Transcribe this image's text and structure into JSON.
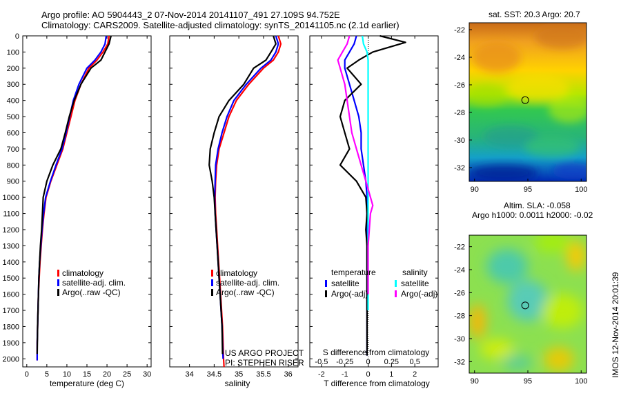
{
  "title_line1": "Argo profile: AO 5904443_2 07-Nov-2014 20141107_491 27.109S 94.752E",
  "title_line2": "Climatology: CARS2009. Satellite-adjusted climatology: synTS_20141105.nc (2.1d earlier)",
  "side_text": "IMOS 12-Nov-2014 20:01:39",
  "credit_line1": "US ARGO PROJECT",
  "credit_line2": "PI: STEPHEN RISER",
  "colors": {
    "climatology": "#ff0000",
    "satellite": "#0000ff",
    "argo": "#000000",
    "salinity_sat": "#00ffff",
    "salinity_argo": "#ff00ff"
  },
  "chart_data": [
    {
      "type": "line",
      "xlabel": "temperature (deg C)",
      "xlim": [
        -1,
        31
      ],
      "ylim": [
        0,
        2050
      ],
      "xticks": [
        "0",
        "5",
        "10",
        "15",
        "20",
        "25",
        "30"
      ],
      "yticks": [
        "0",
        "100",
        "200",
        "300",
        "400",
        "500",
        "600",
        "700",
        "800",
        "900",
        "1000",
        "1100",
        "1200",
        "1300",
        "1400",
        "1500",
        "1600",
        "1700",
        "1800",
        "1900",
        "2000"
      ],
      "legend": [
        "climatology",
        "satellite-adj. clim.",
        "Argo(..raw -QC)"
      ],
      "series": [
        {
          "name": "climatology",
          "color": "#ff0000",
          "x": [
            20.5,
            20.2,
            19.0,
            17.5,
            15.5,
            13.5,
            12.0,
            11.0,
            10.0,
            9.0,
            7.5,
            6.0,
            4.8,
            4.3,
            3.9,
            3.6,
            3.3,
            3.1,
            2.9,
            2.8,
            2.7,
            2.6,
            2.6
          ],
          "y": [
            0,
            50,
            100,
            150,
            200,
            300,
            400,
            500,
            600,
            700,
            800,
            900,
            1000,
            1100,
            1200,
            1300,
            1400,
            1500,
            1600,
            1700,
            1800,
            1900,
            2010
          ]
        },
        {
          "name": "satellite-adj. clim.",
          "color": "#0000ff",
          "x": [
            19.8,
            19.5,
            18.5,
            17.0,
            15.0,
            13.0,
            11.6,
            10.7,
            9.8,
            8.8,
            7.3,
            5.9,
            4.7,
            4.2,
            3.8,
            3.5,
            3.2,
            3.0,
            2.9,
            2.8,
            2.7,
            2.6,
            2.6
          ],
          "y": [
            0,
            50,
            100,
            150,
            200,
            300,
            400,
            500,
            600,
            700,
            800,
            900,
            1000,
            1100,
            1200,
            1300,
            1400,
            1500,
            1600,
            1700,
            1800,
            1900,
            2010
          ]
        },
        {
          "name": "Argo(..raw -QC)",
          "color": "#000000",
          "x": [
            21.0,
            20.5,
            19.5,
            18.5,
            16.0,
            13.5,
            11.8,
            10.6,
            9.6,
            8.5,
            6.5,
            5.0,
            4.1,
            3.9,
            3.7,
            3.4,
            3.2,
            3.0,
            2.9,
            2.8,
            2.7,
            2.6
          ],
          "y": [
            0,
            50,
            100,
            150,
            200,
            300,
            400,
            500,
            600,
            700,
            800,
            900,
            1000,
            1100,
            1200,
            1300,
            1400,
            1500,
            1600,
            1700,
            1800,
            1970
          ]
        }
      ]
    },
    {
      "type": "line",
      "xlabel": "salinity",
      "xlim": [
        33.6,
        36.2
      ],
      "ylim": [
        0,
        2050
      ],
      "xticks": [
        "34",
        "34.5",
        "35",
        "35.5",
        "36"
      ],
      "legend": [
        "climatology",
        "satellite-adj. clim.",
        "Argo(..raw -QC)"
      ],
      "series": [
        {
          "name": "climatology",
          "color": "#ff0000",
          "x": [
            35.8,
            35.85,
            35.8,
            35.7,
            35.5,
            35.2,
            34.95,
            34.8,
            34.7,
            34.6,
            34.55,
            34.53,
            34.52,
            34.53,
            34.55,
            34.57,
            34.59,
            34.61,
            34.63,
            34.65,
            34.67,
            34.68,
            34.69,
            34.7
          ],
          "y": [
            0,
            50,
            100,
            150,
            200,
            300,
            400,
            500,
            600,
            700,
            800,
            900,
            1000,
            1100,
            1200,
            1300,
            1400,
            1500,
            1600,
            1700,
            1800,
            1900,
            2000,
            2050
          ]
        },
        {
          "name": "satellite-adj. clim.",
          "color": "#0000ff",
          "x": [
            35.75,
            35.8,
            35.75,
            35.65,
            35.45,
            35.15,
            34.9,
            34.76,
            34.66,
            34.58,
            34.53,
            34.52,
            34.51,
            34.52,
            34.54,
            34.56,
            34.58,
            34.6,
            34.62,
            34.64,
            34.66,
            34.67,
            34.68
          ],
          "y": [
            0,
            50,
            100,
            150,
            200,
            300,
            400,
            500,
            600,
            700,
            800,
            900,
            1000,
            1100,
            1200,
            1300,
            1400,
            1500,
            1600,
            1700,
            1800,
            1900,
            2000
          ]
        },
        {
          "name": "Argo(..raw -QC)",
          "color": "#000000",
          "x": [
            35.7,
            35.75,
            35.65,
            35.55,
            35.3,
            35.1,
            34.8,
            34.6,
            34.5,
            34.42,
            34.4,
            34.46,
            34.5,
            34.52,
            34.54,
            34.56,
            34.58,
            34.6,
            34.62,
            34.64,
            34.66,
            34.67
          ],
          "y": [
            0,
            50,
            100,
            150,
            200,
            300,
            400,
            500,
            600,
            700,
            800,
            900,
            1000,
            1100,
            1200,
            1300,
            1400,
            1500,
            1600,
            1700,
            1800,
            1970
          ]
        }
      ]
    },
    {
      "type": "line",
      "xlabel": "T difference from climatology",
      "xlabel_top": "S difference from climatology",
      "xlim": [
        -2.5,
        3.0
      ],
      "ylim": [
        0,
        2050
      ],
      "xticks": [
        "-2",
        "-1",
        "0",
        "1",
        "2"
      ],
      "xticks_top": [
        "-0.5",
        "-0.25",
        "0",
        "0.25",
        "0.5"
      ],
      "legend_titles": [
        "temperature",
        "salinity"
      ],
      "legend": [
        "satellite",
        "Argo(-adj)",
        "satellite",
        "Argo(-adj)"
      ],
      "series": [
        {
          "name": "satellite",
          "color": "#0000ff",
          "x": [
            -0.5,
            -0.6,
            -0.8,
            -1.0,
            -1.0,
            -0.8,
            -0.6,
            -0.4,
            -0.3,
            -0.3,
            -0.2,
            -0.1,
            -0.05,
            -0.05,
            -0.05,
            -0.05,
            -0.05,
            -0.05,
            -0.05,
            -0.05,
            -0.05,
            -0.05,
            -0.05
          ],
          "y": [
            0,
            50,
            100,
            150,
            200,
            300,
            400,
            500,
            600,
            700,
            800,
            900,
            1000,
            1100,
            1200,
            1300,
            1400,
            1500,
            1600,
            1700,
            1800,
            1900,
            1980
          ]
        },
        {
          "name": "Argo(-adj)",
          "color": "#000000",
          "x": [
            0.5,
            1.6,
            0.2,
            -0.4,
            -0.9,
            -0.3,
            -1.0,
            -1.2,
            -1.0,
            -0.8,
            -1.2,
            -0.5,
            -0.1,
            -0.05,
            -0.1,
            -0.05,
            -0.05,
            -0.05,
            -0.05,
            -0.05,
            -0.05,
            -0.05,
            -0.05
          ],
          "y": [
            0,
            40,
            100,
            150,
            200,
            300,
            400,
            500,
            600,
            700,
            800,
            900,
            1000,
            1100,
            1200,
            1300,
            1400,
            1500,
            1600,
            1700,
            1800,
            1900,
            1980
          ]
        },
        {
          "name": "satellite",
          "color": "#00ffff",
          "x": [
            -0.25,
            -0.2,
            -0.05,
            0.0,
            0.0,
            0.0,
            0.0,
            0.0,
            0.0,
            0.0,
            0.0,
            0.0,
            0.0,
            0.0,
            0.0,
            0.0,
            0.0,
            0.0,
            0.0,
            0.0
          ],
          "y": [
            0,
            50,
            100,
            150,
            200,
            300,
            400,
            500,
            600,
            700,
            800,
            900,
            1000,
            1100,
            1200,
            1300,
            1400,
            1500,
            1600,
            1700
          ]
        },
        {
          "name": "Argo(-adj)",
          "color": "#ff00ff",
          "x": [
            -0.8,
            -0.9,
            -1.1,
            -1.3,
            -1.2,
            -1.0,
            -0.9,
            -0.8,
            -0.7,
            -0.5,
            -0.3,
            -0.1,
            0.1,
            0.2,
            0.1,
            0.05,
            0.0,
            0.0,
            0.0
          ],
          "y": [
            0,
            50,
            100,
            150,
            200,
            300,
            400,
            500,
            600,
            700,
            800,
            900,
            1000,
            1050,
            1100,
            1200,
            1300,
            1400,
            1600
          ]
        }
      ]
    },
    {
      "type": "heatmap",
      "title": "sat. SST: 20.3 Argo: 20.7",
      "xlim": [
        89.5,
        100.5
      ],
      "ylim": [
        -33,
        -21.5
      ],
      "xticks": [
        "90",
        "95",
        "100"
      ],
      "yticks": [
        "-22",
        "-24",
        "-26",
        "-28",
        "-30",
        "-32"
      ],
      "marker": {
        "lon": 94.752,
        "lat": -27.109
      }
    },
    {
      "type": "heatmap",
      "title": "Altim. SLA: -0.058",
      "subtitle": "Argo h1000: 0.0011 h2000: -0.02",
      "xlim": [
        89.5,
        100.5
      ],
      "ylim": [
        -33,
        -21
      ],
      "xticks": [
        "90",
        "95",
        "100"
      ],
      "yticks": [
        "-22",
        "-24",
        "-26",
        "-28",
        "-30",
        "-32"
      ],
      "marker": {
        "lon": 94.752,
        "lat": -27.109
      }
    }
  ]
}
